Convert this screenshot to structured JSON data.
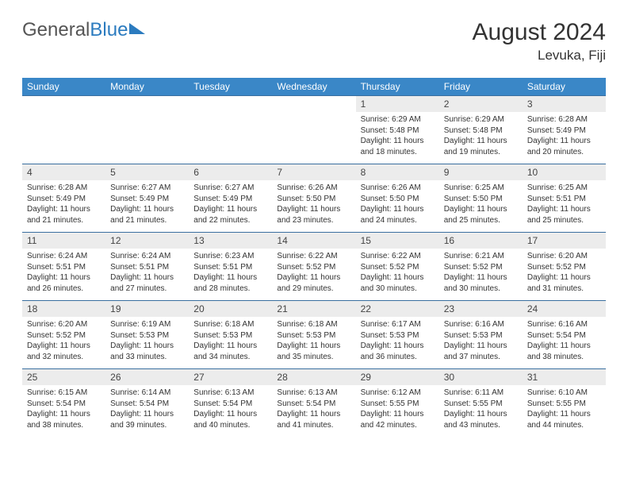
{
  "logo": {
    "text_gray": "General",
    "text_blue": "Blue"
  },
  "title": {
    "month": "August 2024",
    "location": "Levuka, Fiji"
  },
  "colors": {
    "header_bg": "#3a87c7",
    "header_text": "#ffffff",
    "daynum_bg": "#ececec",
    "row_border": "#3a6fa0",
    "body_text": "#333333",
    "logo_gray": "#555555",
    "logo_blue": "#2b7bbf"
  },
  "calendar": {
    "day_headers": [
      "Sunday",
      "Monday",
      "Tuesday",
      "Wednesday",
      "Thursday",
      "Friday",
      "Saturday"
    ],
    "weeks": [
      [
        {
          "num": "",
          "sunrise": "",
          "sunset": "",
          "daylight": ""
        },
        {
          "num": "",
          "sunrise": "",
          "sunset": "",
          "daylight": ""
        },
        {
          "num": "",
          "sunrise": "",
          "sunset": "",
          "daylight": ""
        },
        {
          "num": "",
          "sunrise": "",
          "sunset": "",
          "daylight": ""
        },
        {
          "num": "1",
          "sunrise": "6:29 AM",
          "sunset": "5:48 PM",
          "daylight": "11 hours and 18 minutes."
        },
        {
          "num": "2",
          "sunrise": "6:29 AM",
          "sunset": "5:48 PM",
          "daylight": "11 hours and 19 minutes."
        },
        {
          "num": "3",
          "sunrise": "6:28 AM",
          "sunset": "5:49 PM",
          "daylight": "11 hours and 20 minutes."
        }
      ],
      [
        {
          "num": "4",
          "sunrise": "6:28 AM",
          "sunset": "5:49 PM",
          "daylight": "11 hours and 21 minutes."
        },
        {
          "num": "5",
          "sunrise": "6:27 AM",
          "sunset": "5:49 PM",
          "daylight": "11 hours and 21 minutes."
        },
        {
          "num": "6",
          "sunrise": "6:27 AM",
          "sunset": "5:49 PM",
          "daylight": "11 hours and 22 minutes."
        },
        {
          "num": "7",
          "sunrise": "6:26 AM",
          "sunset": "5:50 PM",
          "daylight": "11 hours and 23 minutes."
        },
        {
          "num": "8",
          "sunrise": "6:26 AM",
          "sunset": "5:50 PM",
          "daylight": "11 hours and 24 minutes."
        },
        {
          "num": "9",
          "sunrise": "6:25 AM",
          "sunset": "5:50 PM",
          "daylight": "11 hours and 25 minutes."
        },
        {
          "num": "10",
          "sunrise": "6:25 AM",
          "sunset": "5:51 PM",
          "daylight": "11 hours and 25 minutes."
        }
      ],
      [
        {
          "num": "11",
          "sunrise": "6:24 AM",
          "sunset": "5:51 PM",
          "daylight": "11 hours and 26 minutes."
        },
        {
          "num": "12",
          "sunrise": "6:24 AM",
          "sunset": "5:51 PM",
          "daylight": "11 hours and 27 minutes."
        },
        {
          "num": "13",
          "sunrise": "6:23 AM",
          "sunset": "5:51 PM",
          "daylight": "11 hours and 28 minutes."
        },
        {
          "num": "14",
          "sunrise": "6:22 AM",
          "sunset": "5:52 PM",
          "daylight": "11 hours and 29 minutes."
        },
        {
          "num": "15",
          "sunrise": "6:22 AM",
          "sunset": "5:52 PM",
          "daylight": "11 hours and 30 minutes."
        },
        {
          "num": "16",
          "sunrise": "6:21 AM",
          "sunset": "5:52 PM",
          "daylight": "11 hours and 30 minutes."
        },
        {
          "num": "17",
          "sunrise": "6:20 AM",
          "sunset": "5:52 PM",
          "daylight": "11 hours and 31 minutes."
        }
      ],
      [
        {
          "num": "18",
          "sunrise": "6:20 AM",
          "sunset": "5:52 PM",
          "daylight": "11 hours and 32 minutes."
        },
        {
          "num": "19",
          "sunrise": "6:19 AM",
          "sunset": "5:53 PM",
          "daylight": "11 hours and 33 minutes."
        },
        {
          "num": "20",
          "sunrise": "6:18 AM",
          "sunset": "5:53 PM",
          "daylight": "11 hours and 34 minutes."
        },
        {
          "num": "21",
          "sunrise": "6:18 AM",
          "sunset": "5:53 PM",
          "daylight": "11 hours and 35 minutes."
        },
        {
          "num": "22",
          "sunrise": "6:17 AM",
          "sunset": "5:53 PM",
          "daylight": "11 hours and 36 minutes."
        },
        {
          "num": "23",
          "sunrise": "6:16 AM",
          "sunset": "5:53 PM",
          "daylight": "11 hours and 37 minutes."
        },
        {
          "num": "24",
          "sunrise": "6:16 AM",
          "sunset": "5:54 PM",
          "daylight": "11 hours and 38 minutes."
        }
      ],
      [
        {
          "num": "25",
          "sunrise": "6:15 AM",
          "sunset": "5:54 PM",
          "daylight": "11 hours and 38 minutes."
        },
        {
          "num": "26",
          "sunrise": "6:14 AM",
          "sunset": "5:54 PM",
          "daylight": "11 hours and 39 minutes."
        },
        {
          "num": "27",
          "sunrise": "6:13 AM",
          "sunset": "5:54 PM",
          "daylight": "11 hours and 40 minutes."
        },
        {
          "num": "28",
          "sunrise": "6:13 AM",
          "sunset": "5:54 PM",
          "daylight": "11 hours and 41 minutes."
        },
        {
          "num": "29",
          "sunrise": "6:12 AM",
          "sunset": "5:55 PM",
          "daylight": "11 hours and 42 minutes."
        },
        {
          "num": "30",
          "sunrise": "6:11 AM",
          "sunset": "5:55 PM",
          "daylight": "11 hours and 43 minutes."
        },
        {
          "num": "31",
          "sunrise": "6:10 AM",
          "sunset": "5:55 PM",
          "daylight": "11 hours and 44 minutes."
        }
      ]
    ]
  }
}
